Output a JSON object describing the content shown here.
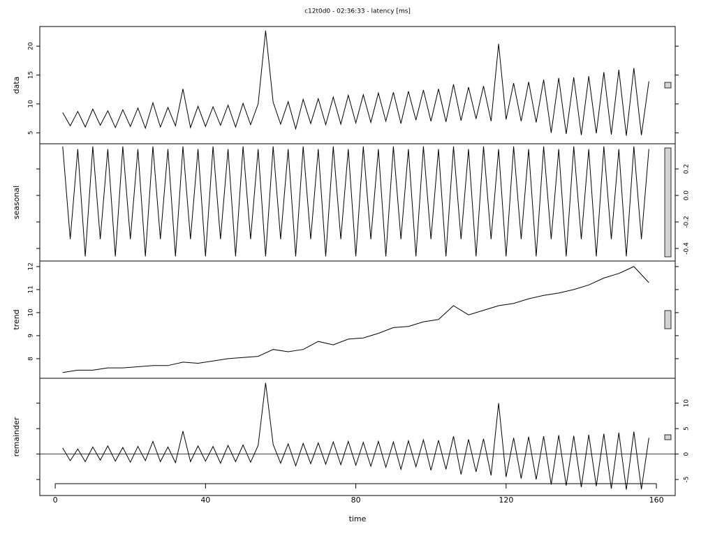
{
  "chart_data": [
    {
      "type": "line",
      "title": "c12t0d0 - 02:36:33 - latency [ms]",
      "ylabel": "data",
      "axis_side": "left",
      "color": "#000000",
      "ylim": [
        3.1,
        23.4
      ],
      "yticks": [
        5,
        10,
        15,
        20
      ],
      "x": [
        2,
        4,
        6,
        8,
        10,
        12,
        14,
        16,
        18,
        20,
        22,
        24,
        26,
        28,
        30,
        32,
        34,
        36,
        38,
        40,
        42,
        44,
        46,
        48,
        50,
        52,
        54,
        56,
        58,
        60,
        62,
        64,
        66,
        68,
        70,
        72,
        74,
        76,
        78,
        80,
        82,
        84,
        86,
        88,
        90,
        92,
        94,
        96,
        98,
        100,
        102,
        104,
        106,
        108,
        110,
        112,
        114,
        116,
        118,
        120,
        122,
        124,
        126,
        128,
        130,
        132,
        134,
        136,
        138,
        140,
        142,
        144,
        146,
        148,
        150,
        152,
        154,
        156,
        158
      ],
      "values": [
        8.5,
        6.2,
        8.7,
        6.0,
        9.1,
        6.3,
        8.8,
        5.9,
        9.0,
        6.1,
        9.3,
        5.8,
        10.2,
        6.0,
        9.4,
        6.2,
        12.6,
        5.9,
        9.6,
        6.1,
        9.5,
        6.3,
        9.8,
        6.0,
        10.1,
        6.4,
        10.0,
        22.7,
        10.3,
        6.5,
        10.4,
        5.7,
        10.8,
        6.6,
        10.9,
        6.4,
        11.2,
        6.5,
        11.5,
        6.7,
        11.6,
        6.8,
        11.9,
        7.0,
        12.0,
        6.6,
        12.2,
        7.2,
        12.4,
        7.0,
        12.6,
        6.9,
        13.4,
        7.1,
        12.9,
        7.4,
        13.1,
        7.0,
        20.4,
        7.3,
        13.6,
        7.0,
        13.8,
        6.8,
        14.2,
        5.0,
        14.5,
        4.8,
        14.6,
        4.6,
        14.8,
        4.9,
        15.5,
        4.7,
        15.9,
        4.5,
        16.2,
        4.6,
        13.9
      ]
    },
    {
      "type": "line",
      "ylabel": "seasonal",
      "axis_side": "right",
      "color": "#000000",
      "ylim": [
        -0.495,
        0.39
      ],
      "yticks": [
        {
          "value": -0.4,
          "label": "-0.4"
        },
        {
          "value": -0.2,
          "label": "-0.2"
        },
        {
          "value": 0,
          "label": "0.0"
        },
        {
          "value": 0.2,
          "label": "0.2"
        }
      ],
      "x": [
        2,
        4,
        6,
        8,
        10,
        12,
        14,
        16,
        18,
        20,
        22,
        24,
        26,
        28,
        30,
        32,
        34,
        36,
        38,
        40,
        42,
        44,
        46,
        48,
        50,
        52,
        54,
        56,
        58,
        60,
        62,
        64,
        66,
        68,
        70,
        72,
        74,
        76,
        78,
        80,
        82,
        84,
        86,
        88,
        90,
        92,
        94,
        96,
        98,
        100,
        102,
        104,
        106,
        108,
        110,
        112,
        114,
        116,
        118,
        120,
        122,
        124,
        126,
        128,
        130,
        132,
        134,
        136,
        138,
        140,
        142,
        144,
        146,
        148,
        150,
        152,
        154,
        156,
        158
      ],
      "values": [
        0.37,
        -0.33,
        0.35,
        -0.46,
        0.37,
        -0.33,
        0.35,
        -0.46,
        0.37,
        -0.33,
        0.35,
        -0.46,
        0.37,
        -0.33,
        0.35,
        -0.46,
        0.37,
        -0.33,
        0.35,
        -0.46,
        0.37,
        -0.33,
        0.35,
        -0.46,
        0.37,
        -0.33,
        0.35,
        -0.46,
        0.37,
        -0.33,
        0.35,
        -0.46,
        0.37,
        -0.33,
        0.35,
        -0.46,
        0.37,
        -0.33,
        0.35,
        -0.46,
        0.37,
        -0.33,
        0.35,
        -0.46,
        0.37,
        -0.33,
        0.35,
        -0.46,
        0.37,
        -0.33,
        0.35,
        -0.46,
        0.37,
        -0.33,
        0.35,
        -0.46,
        0.37,
        -0.33,
        0.35,
        -0.46,
        0.37,
        -0.33,
        0.35,
        -0.46,
        0.37,
        -0.33,
        0.35,
        -0.46,
        0.37,
        -0.33,
        0.35,
        -0.46,
        0.37,
        -0.33,
        0.35,
        -0.46,
        0.37,
        -0.33,
        0.35
      ]
    },
    {
      "type": "line",
      "ylabel": "trend",
      "axis_side": "left",
      "color": "#000000",
      "ylim": [
        7.15,
        12.24
      ],
      "yticks": [
        8,
        9,
        10,
        11,
        12
      ],
      "x": [
        2,
        6,
        10,
        14,
        18,
        22,
        26,
        30,
        34,
        38,
        42,
        46,
        50,
        54,
        58,
        62,
        66,
        70,
        74,
        78,
        82,
        86,
        90,
        94,
        98,
        102,
        106,
        110,
        114,
        118,
        122,
        126,
        130,
        134,
        138,
        142,
        146,
        150,
        154,
        158
      ],
      "values": [
        7.4,
        7.5,
        7.5,
        7.6,
        7.6,
        7.65,
        7.7,
        7.7,
        7.85,
        7.8,
        7.9,
        8.0,
        8.05,
        8.1,
        8.4,
        8.3,
        8.4,
        8.75,
        8.6,
        8.85,
        8.9,
        9.1,
        9.35,
        9.4,
        9.6,
        9.7,
        10.3,
        9.9,
        10.1,
        10.3,
        10.4,
        10.6,
        10.75,
        10.85,
        11.0,
        11.2,
        11.5,
        11.7,
        12.0,
        11.3
      ]
    },
    {
      "type": "line",
      "ylabel": "remainder",
      "axis_side": "right",
      "color": "#000000",
      "zero_line": true,
      "ylim": [
        -8.15,
        14.9
      ],
      "yticks": [
        -5,
        0,
        5,
        10
      ],
      "xlabel": "time",
      "xlim": [
        -4.1,
        165
      ],
      "xticks": [
        0,
        40,
        80,
        120,
        160
      ],
      "x": [
        2,
        4,
        6,
        8,
        10,
        12,
        14,
        16,
        18,
        20,
        22,
        24,
        26,
        28,
        30,
        32,
        34,
        36,
        38,
        40,
        42,
        44,
        46,
        48,
        50,
        52,
        54,
        56,
        58,
        60,
        62,
        64,
        66,
        68,
        70,
        72,
        74,
        76,
        78,
        80,
        82,
        84,
        86,
        88,
        90,
        92,
        94,
        96,
        98,
        100,
        102,
        104,
        106,
        108,
        110,
        112,
        114,
        116,
        118,
        120,
        122,
        124,
        126,
        128,
        130,
        132,
        134,
        136,
        138,
        140,
        142,
        144,
        146,
        148,
        150,
        152,
        154,
        156,
        158
      ],
      "values": [
        1.2,
        -1.3,
        1.0,
        -1.5,
        1.4,
        -1.2,
        1.6,
        -1.4,
        1.3,
        -1.6,
        1.5,
        -1.3,
        2.5,
        -1.5,
        1.4,
        -1.7,
        4.5,
        -1.5,
        1.6,
        -1.4,
        1.5,
        -1.8,
        1.7,
        -1.5,
        1.8,
        -1.6,
        1.7,
        14.0,
        1.9,
        -1.8,
        2.0,
        -2.3,
        2.1,
        -1.9,
        2.2,
        -2.0,
        2.4,
        -2.1,
        2.5,
        -2.2,
        2.3,
        -2.4,
        2.5,
        -2.6,
        2.4,
        -3.0,
        2.6,
        -2.5,
        2.8,
        -3.2,
        2.7,
        -3.0,
        3.5,
        -4.0,
        2.9,
        -3.5,
        3.0,
        -4.2,
        10.0,
        -4.5,
        3.2,
        -4.8,
        3.4,
        -5.0,
        3.5,
        -6.0,
        3.7,
        -6.2,
        3.6,
        -6.5,
        3.8,
        -6.3,
        4.0,
        -6.8,
        4.2,
        -7.0,
        4.4,
        -6.9,
        3.2
      ]
    }
  ]
}
